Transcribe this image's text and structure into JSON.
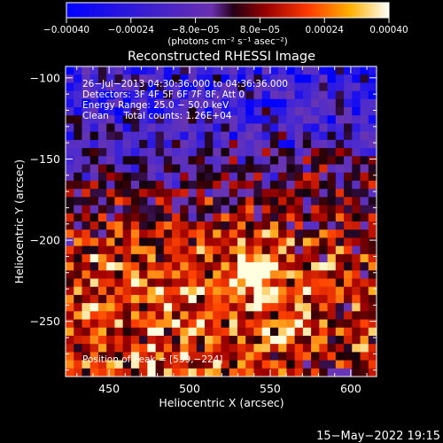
{
  "colorbar": {
    "ticks": [
      "−0.00040",
      "−0.00024",
      "−8.0e−05",
      "8.0e−05",
      "0.00024",
      "0.00040"
    ],
    "tick_values": [
      -0.0004,
      -0.00024,
      -8e-05,
      8e-05,
      0.00024,
      0.0004
    ],
    "range": [
      -0.0004,
      0.0004
    ],
    "units_label": "(photons cm⁻² s⁻¹ asec⁻²)"
  },
  "chart_data": {
    "type": "heatmap",
    "title": "Reconstructed RHESSI Image",
    "xlabel": "Heliocentric X (arcsec)",
    "ylabel": "Heliocentric Y (arcsec)",
    "xlim": [
      423,
      616
    ],
    "ylim": [
      -284,
      -93
    ],
    "x_ticks": [
      450,
      500,
      550,
      600
    ],
    "x_tick_labels": [
      "450",
      "500",
      "550",
      "600"
    ],
    "y_ticks": [
      -100,
      -150,
      -200,
      -250
    ],
    "y_tick_labels": [
      "−100",
      "−150",
      "−200",
      "−250"
    ],
    "peak": [
      539,
      -224
    ],
    "colors": {
      "neg": "#0000ff",
      "mid": "#6a2fb0",
      "hot": "#ff3000",
      "max": "#ffffff"
    }
  },
  "annotations": {
    "time": "26−Jul−2013 04:30:36.000 to 04:36:36.000",
    "detectors": "Detectors: 3F 4F 5F 6F 7F 8F, Att 0",
    "energy": "Energy Range: 25.0 − 50.0 keV",
    "clean": "Clean     Total counts: 1.26E+04",
    "peak": "Position of Peak = [539,−224]"
  },
  "footer_date": "15−May−2022 19:15"
}
